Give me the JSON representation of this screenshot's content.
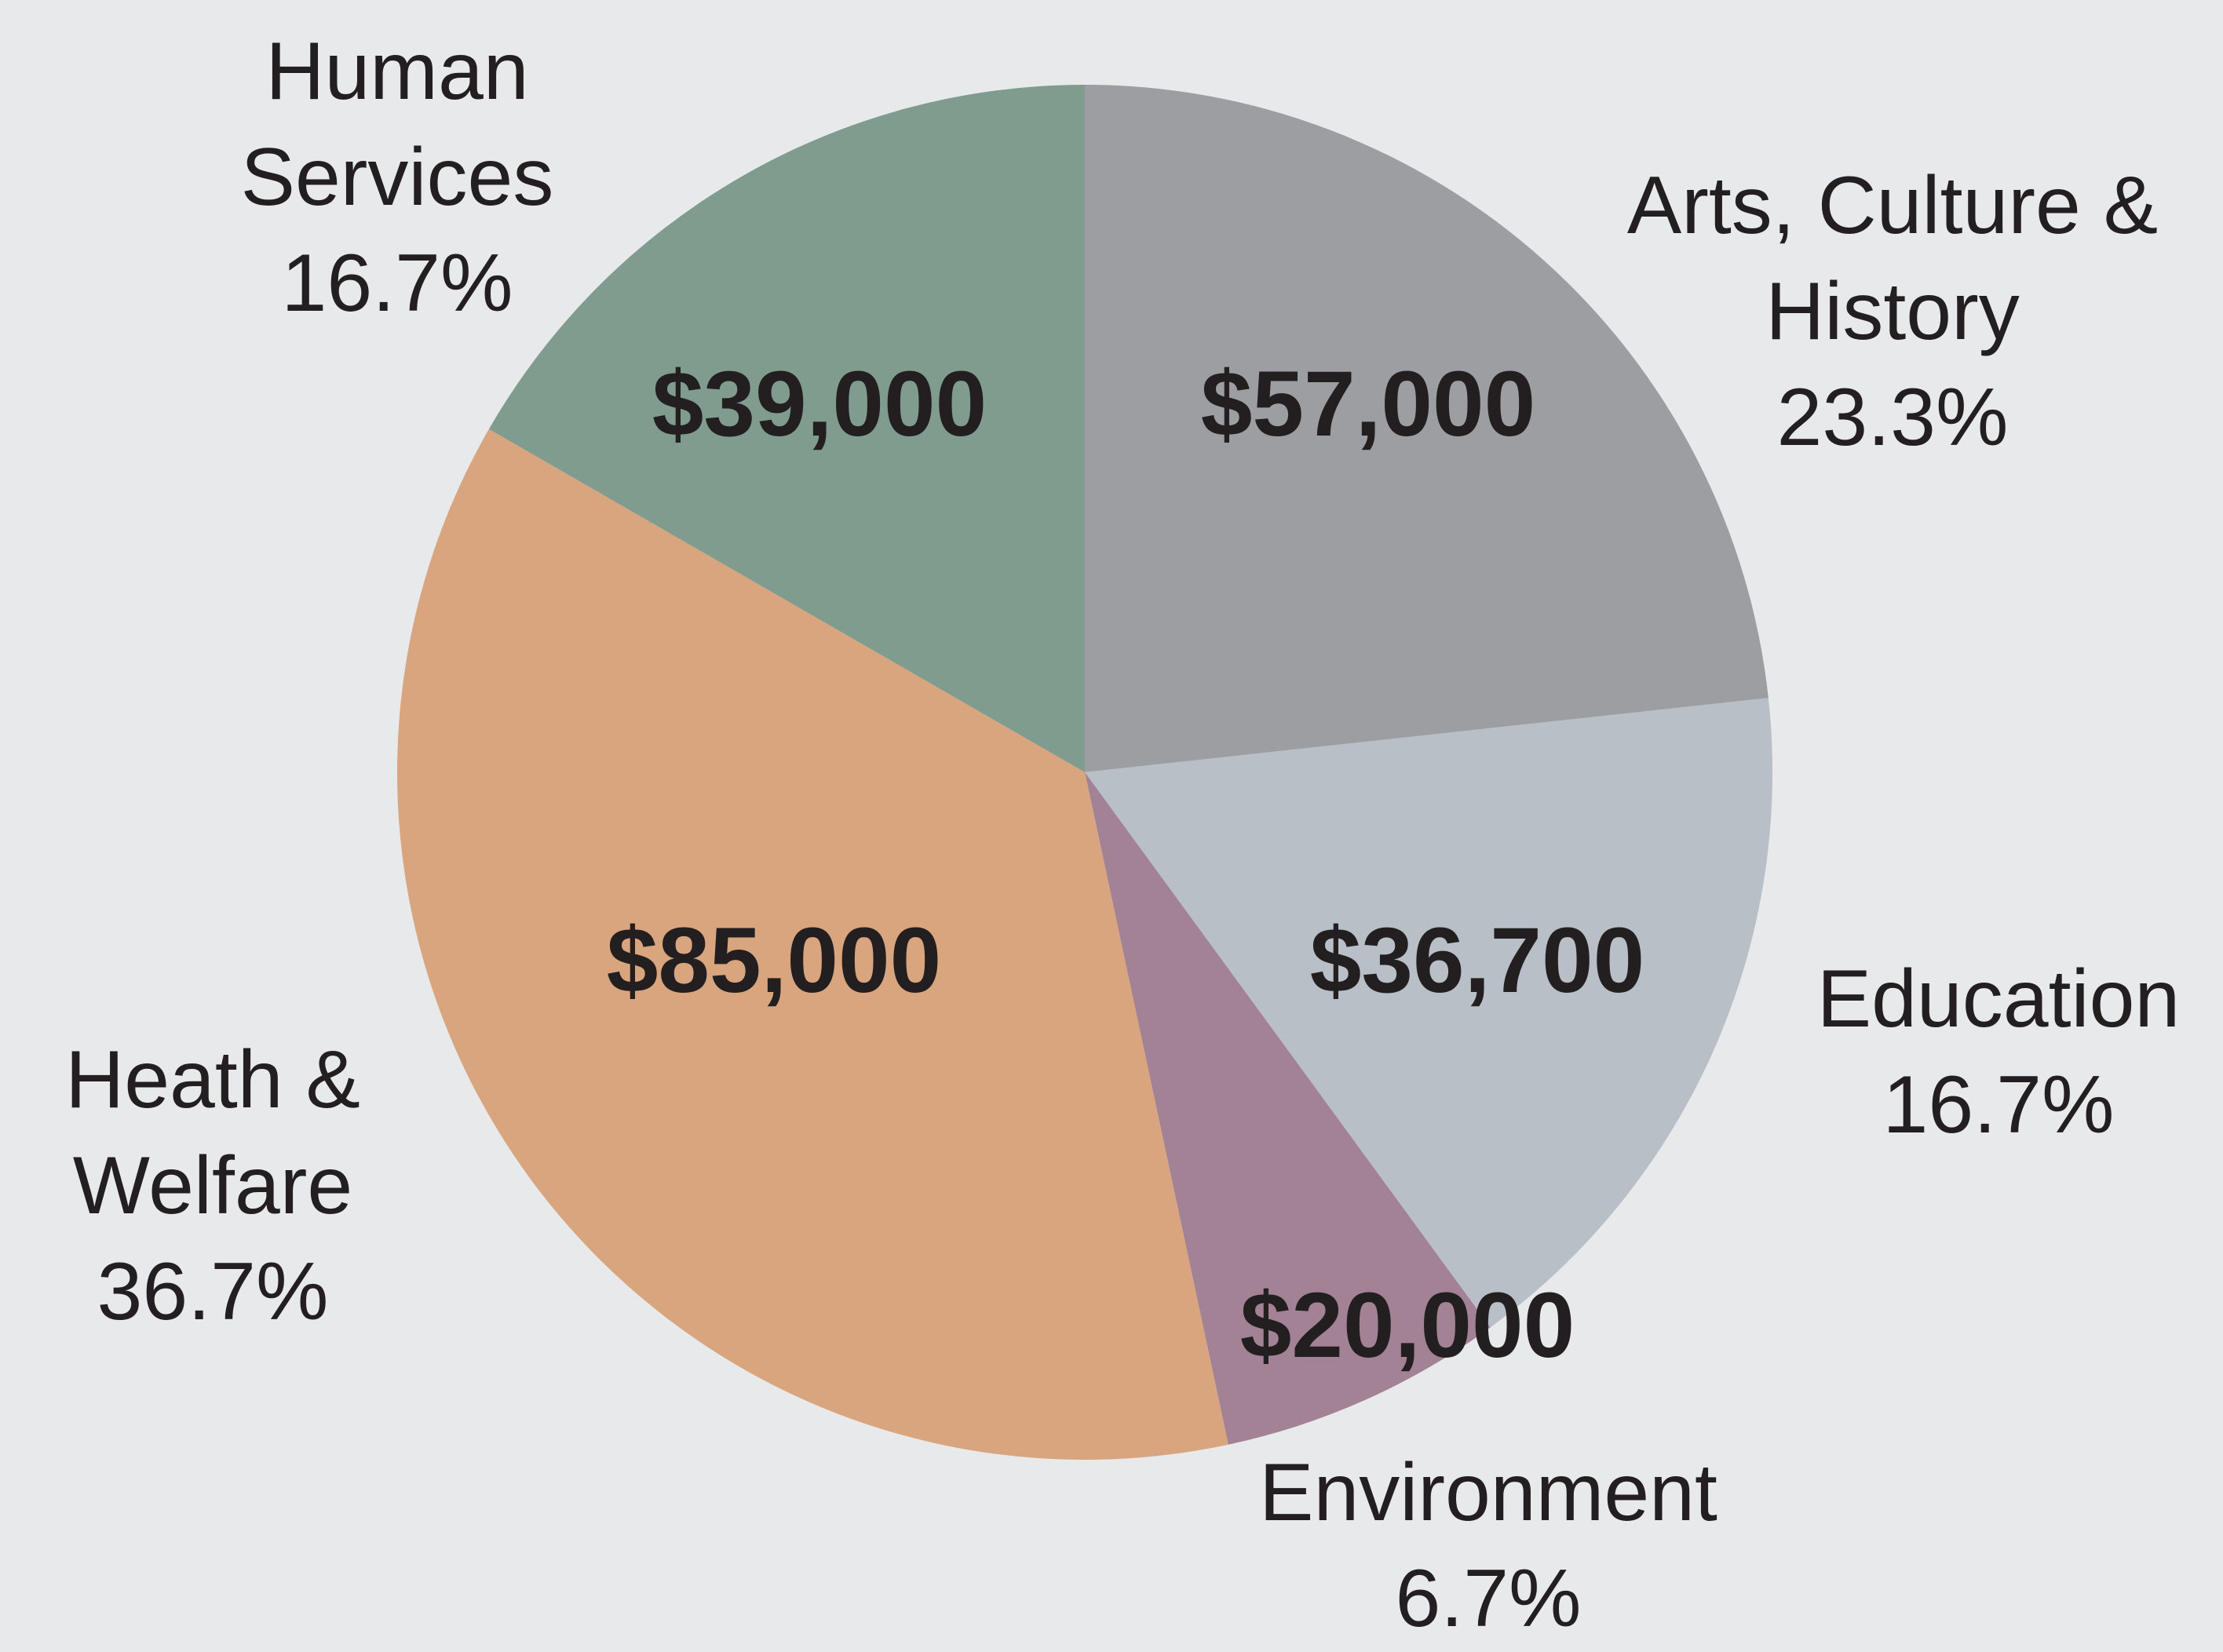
{
  "chart_data": {
    "type": "pie",
    "categories": [
      "Arts, Culture & History",
      "Education",
      "Environment",
      "Heath & Welfare",
      "Human Services"
    ],
    "values": [
      23.3,
      16.7,
      6.7,
      36.7,
      16.7
    ],
    "value_labels": [
      "23.3%",
      "16.7%",
      "6.7%",
      "36.7%",
      "16.7%"
    ],
    "amounts": [
      57000,
      36700,
      20000,
      85000,
      39000
    ],
    "amount_labels": [
      "$57,000",
      "$36,700",
      "$20,000",
      "$85,000",
      "$39,000"
    ],
    "colors": [
      "#9d9ea1",
      "#b8bfc6",
      "#a28294",
      "#d8a57f",
      "#7f9c8f"
    ]
  }
}
